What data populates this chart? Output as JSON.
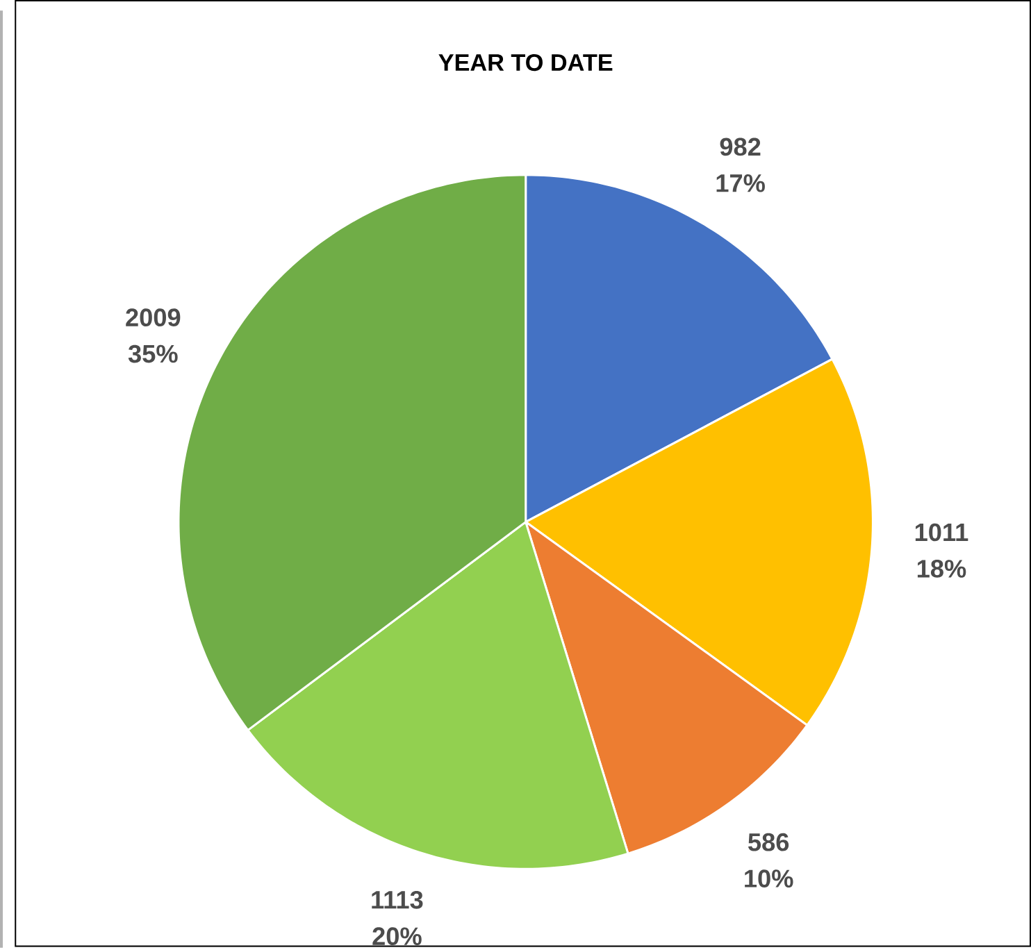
{
  "chart_data": {
    "type": "pie",
    "title": "YEAR TO DATE",
    "categories": [
      null,
      null,
      null,
      null,
      null
    ],
    "values": [
      982,
      1011,
      586,
      1113,
      2009
    ],
    "colors": [
      "#4472c4",
      "#ffc000",
      "#ed7d31",
      "#92d050",
      "#70ad47"
    ],
    "value_labels": [
      "982 17%",
      "1011 18%",
      "586 10%",
      "1113 20%",
      "2009 35%"
    ]
  }
}
